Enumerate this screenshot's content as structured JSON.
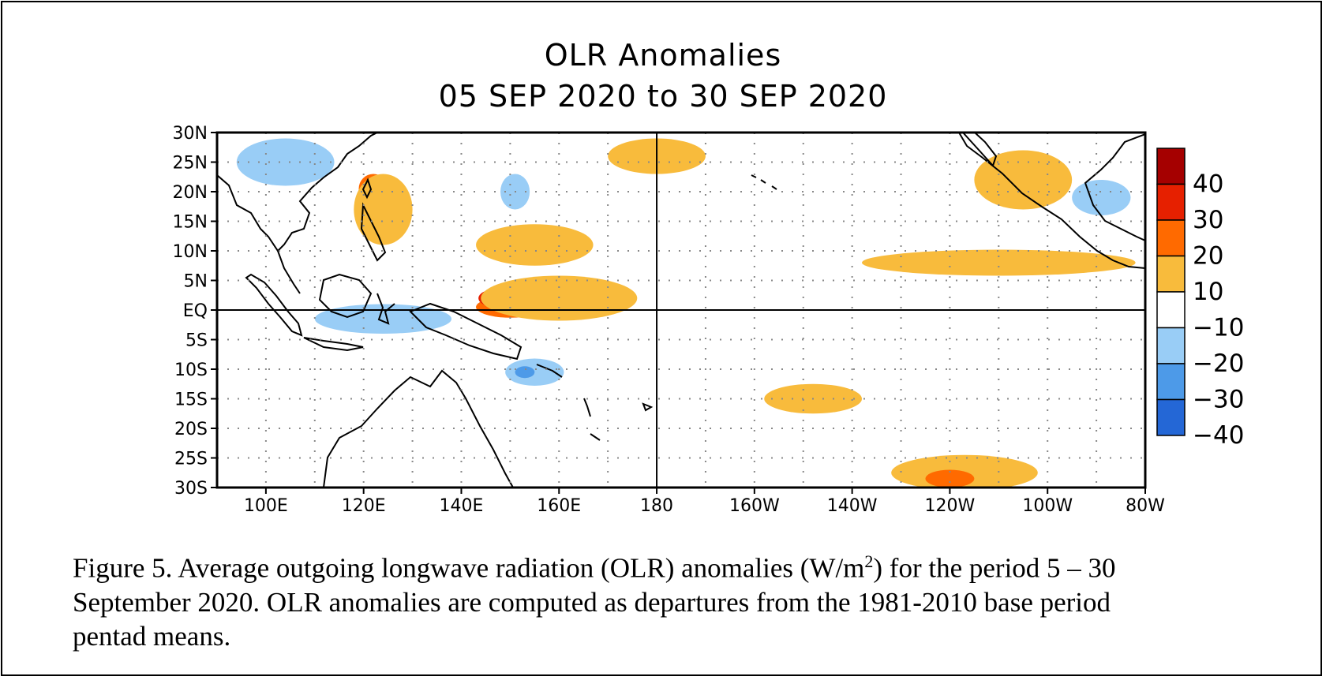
{
  "title": {
    "line1": "OLR Anomalies",
    "line2": "05 SEP 2020 to 30 SEP 2020"
  },
  "chart_data": {
    "type": "heatmap",
    "lat_labels": [
      "30N",
      "25N",
      "20N",
      "15N",
      "10N",
      "5N",
      "EQ",
      "5S",
      "10S",
      "15S",
      "20S",
      "25S",
      "30S"
    ],
    "lon_labels": [
      "100E",
      "120E",
      "140E",
      "160E",
      "180",
      "160W",
      "140W",
      "120W",
      "100W",
      "80W"
    ],
    "lon_range_east": [
      90,
      280
    ],
    "lat_range": [
      -30,
      30
    ],
    "colorbar": {
      "labels": [
        "40",
        "30",
        "20",
        "10",
        "−10",
        "−20",
        "−30",
        "−40"
      ],
      "colors": [
        "#a50000",
        "#e62000",
        "#ff6a00",
        "#f8bb3c",
        "#ffffff",
        "#99cdf6",
        "#4d9ae8",
        "#2467d6"
      ]
    },
    "regions": [
      {
        "level": 20,
        "lon": 150,
        "lat": 0.5,
        "rx": 7,
        "ry": 1.8
      },
      {
        "level": 30,
        "lon": 147,
        "lat": 2,
        "rx": 3.5,
        "ry": 1.5
      },
      {
        "level": 10,
        "lon": 160,
        "lat": 2,
        "rx": 16,
        "ry": 3.8
      },
      {
        "level": 10,
        "lon": 155,
        "lat": 11,
        "rx": 12,
        "ry": 3.5
      },
      {
        "level": 20,
        "lon": 122,
        "lat": 20.5,
        "rx": 3,
        "ry": 2.5
      },
      {
        "level": 10,
        "lon": 124,
        "lat": 17,
        "rx": 6,
        "ry": 6
      },
      {
        "level": 10,
        "lon": 180,
        "lat": 26,
        "rx": 10,
        "ry": 3
      },
      {
        "level": 10,
        "lon": 250,
        "lat": 8,
        "rx": 28,
        "ry": 2.2
      },
      {
        "level": 10,
        "lon": 255,
        "lat": 22,
        "rx": 10,
        "ry": 5
      },
      {
        "level": 10,
        "lon": 212,
        "lat": -15,
        "rx": 10,
        "ry": 2.5
      },
      {
        "level": 10,
        "lon": 243,
        "lat": -27.5,
        "rx": 15,
        "ry": 3
      },
      {
        "level": 20,
        "lon": 240,
        "lat": -28.5,
        "rx": 5,
        "ry": 1.5
      },
      {
        "level": -10,
        "lon": 104,
        "lat": 25,
        "rx": 10,
        "ry": 4
      },
      {
        "level": -10,
        "lon": 124,
        "lat": -1.5,
        "rx": 14,
        "ry": 2.5
      },
      {
        "level": -10,
        "lon": 155,
        "lat": -10.5,
        "rx": 6,
        "ry": 2.3
      },
      {
        "level": -20,
        "lon": 153,
        "lat": -10.5,
        "rx": 2,
        "ry": 1
      },
      {
        "level": -10,
        "lon": 151,
        "lat": 20,
        "rx": 3,
        "ry": 3
      },
      {
        "level": -10,
        "lon": 271,
        "lat": 19,
        "rx": 6,
        "ry": 3
      }
    ]
  },
  "caption": {
    "line1_a": "Figure 5. Average outgoing longwave radiation (OLR) anomalies (W/m",
    "line1_sup": "2",
    "line1_b": ") for the period 5 – 30",
    "line2": "September 2020.  OLR anomalies are computed as departures from the 1981-2010 base period",
    "line3": "pentad means."
  }
}
